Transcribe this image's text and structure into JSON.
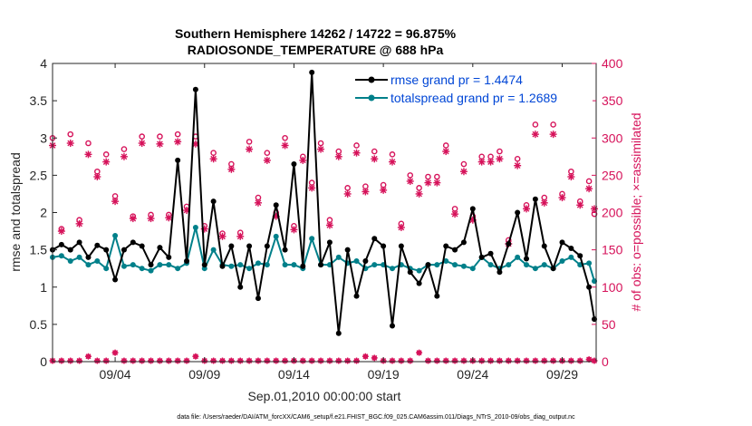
{
  "chart_data": {
    "type": "line",
    "title_line1": "Southern Hemisphere 14262 / 14722 = 96.875%",
    "title_line2": "RADIOSONDE_TEMPERATURE @ 688 hPa",
    "xlabel": "Sep.01,2010 00:00:00 start",
    "ylabel_left": "rmse and totalspread",
    "ylabel_right": "# of obs: o=possible; ×=assimilated",
    "xlim": [
      0.5,
      30.9
    ],
    "ylim_left": [
      0,
      4
    ],
    "ylim_right": [
      0,
      400
    ],
    "x_ticks": [
      {
        "value": 4,
        "label": "09/04"
      },
      {
        "value": 9,
        "label": "09/09"
      },
      {
        "value": 14,
        "label": "09/14"
      },
      {
        "value": 19,
        "label": "09/19"
      },
      {
        "value": 24,
        "label": "09/24"
      },
      {
        "value": 29,
        "label": "09/29"
      }
    ],
    "y_ticks_left": [
      {
        "value": 0,
        "label": "0"
      },
      {
        "value": 0.5,
        "label": "0.5"
      },
      {
        "value": 1,
        "label": "1"
      },
      {
        "value": 1.5,
        "label": "1.5"
      },
      {
        "value": 2,
        "label": "2"
      },
      {
        "value": 2.5,
        "label": "2.5"
      },
      {
        "value": 3,
        "label": "3"
      },
      {
        "value": 3.5,
        "label": "3.5"
      },
      {
        "value": 4,
        "label": "4"
      }
    ],
    "y_ticks_right": [
      {
        "value": 0,
        "label": "0"
      },
      {
        "value": 50,
        "label": "50"
      },
      {
        "value": 100,
        "label": "100"
      },
      {
        "value": 150,
        "label": "150"
      },
      {
        "value": 200,
        "label": "200"
      },
      {
        "value": 250,
        "label": "250"
      },
      {
        "value": 300,
        "label": "300"
      },
      {
        "value": 350,
        "label": "350"
      },
      {
        "value": 400,
        "label": "400"
      }
    ],
    "colors": {
      "rmse": "#000000",
      "spread": "#00808a",
      "obs": "#d6125a",
      "legend_text": "#0046d6"
    },
    "legend": [
      {
        "name": "rmse grand pr = 1.4474",
        "series": "rmse"
      },
      {
        "name": "totalspread grand pr = 1.2689",
        "series": "spread"
      }
    ],
    "series": [
      {
        "name": "rmse",
        "x": [
          0.5,
          1.0,
          1.5,
          2.0,
          2.5,
          3.0,
          3.5,
          4.0,
          4.5,
          5.0,
          5.5,
          6.0,
          6.5,
          7.0,
          7.5,
          8.0,
          8.5,
          9.0,
          9.5,
          10.0,
          10.5,
          11.0,
          11.5,
          12.0,
          12.5,
          13.0,
          13.5,
          14.0,
          14.5,
          15.0,
          15.5,
          16.0,
          16.5,
          17.0,
          17.5,
          18.0,
          18.5,
          19.0,
          19.5,
          20.0,
          20.5,
          21.0,
          21.5,
          22.0,
          22.5,
          23.0,
          23.5,
          24.0,
          24.5,
          25.0,
          25.5,
          26.0,
          26.5,
          27.0,
          27.5,
          28.0,
          28.5,
          29.0,
          29.5,
          30.0,
          30.5,
          30.8
        ],
        "values": [
          1.5,
          1.57,
          1.5,
          1.6,
          1.4,
          1.56,
          1.5,
          1.1,
          1.5,
          1.6,
          1.55,
          1.3,
          1.53,
          1.4,
          2.7,
          1.35,
          3.65,
          1.3,
          2.15,
          1.28,
          1.55,
          1.0,
          1.55,
          0.85,
          1.55,
          2.1,
          1.5,
          2.65,
          1.28,
          3.88,
          1.3,
          1.6,
          0.38,
          1.5,
          0.88,
          1.35,
          1.65,
          1.55,
          0.48,
          1.55,
          1.2,
          1.05,
          1.3,
          0.88,
          1.55,
          1.5,
          1.6,
          2.05,
          1.4,
          1.45,
          1.2,
          1.58,
          2.0,
          1.38,
          2.18,
          1.55,
          1.25,
          1.6,
          1.52,
          1.42,
          1.0,
          0.57
        ]
      },
      {
        "name": "totalspread",
        "x": [
          0.5,
          1.0,
          1.5,
          2.0,
          2.5,
          3.0,
          3.5,
          4.0,
          4.5,
          5.0,
          5.5,
          6.0,
          6.5,
          7.0,
          7.5,
          8.0,
          8.5,
          9.0,
          9.5,
          10.0,
          10.5,
          11.0,
          11.5,
          12.0,
          12.5,
          13.0,
          13.5,
          14.0,
          14.5,
          15.0,
          15.5,
          16.0,
          16.5,
          17.0,
          17.5,
          18.0,
          18.5,
          19.0,
          19.5,
          20.0,
          20.5,
          21.0,
          21.5,
          22.0,
          22.5,
          23.0,
          23.5,
          24.0,
          24.5,
          25.0,
          25.5,
          26.0,
          26.5,
          27.0,
          27.5,
          28.0,
          28.5,
          29.0,
          29.5,
          30.0,
          30.5,
          30.8
        ],
        "values": [
          1.4,
          1.42,
          1.35,
          1.4,
          1.3,
          1.35,
          1.25,
          1.69,
          1.28,
          1.3,
          1.25,
          1.22,
          1.3,
          1.3,
          1.25,
          1.32,
          1.8,
          1.25,
          1.5,
          1.3,
          1.28,
          1.3,
          1.25,
          1.32,
          1.3,
          1.68,
          1.3,
          1.3,
          1.25,
          1.65,
          1.3,
          1.3,
          1.4,
          1.32,
          1.35,
          1.25,
          1.3,
          1.3,
          1.25,
          1.3,
          1.25,
          1.22,
          1.3,
          1.3,
          1.35,
          1.3,
          1.28,
          1.25,
          1.4,
          1.3,
          1.25,
          1.3,
          1.4,
          1.3,
          1.25,
          1.3,
          1.25,
          1.35,
          1.4,
          1.3,
          1.32,
          1.08
        ]
      },
      {
        "name": "obs possible",
        "x": [
          0.5,
          1.0,
          1.5,
          2.0,
          2.5,
          3.0,
          3.5,
          4.0,
          4.5,
          5.0,
          5.5,
          6.0,
          6.5,
          7.0,
          7.5,
          8.0,
          8.5,
          9.0,
          9.5,
          10.0,
          10.5,
          11.0,
          11.5,
          12.0,
          12.5,
          13.0,
          13.5,
          14.0,
          14.5,
          15.0,
          15.5,
          16.0,
          16.5,
          17.0,
          17.5,
          18.0,
          18.5,
          19.0,
          19.5,
          20.0,
          20.5,
          21.0,
          21.5,
          22.0,
          22.5,
          23.0,
          23.5,
          24.0,
          24.5,
          25.0,
          25.5,
          26.0,
          26.5,
          27.0,
          27.5,
          28.0,
          28.5,
          29.0,
          29.5,
          30.0,
          30.5,
          30.8
        ],
        "values": [
          300,
          178,
          305,
          190,
          293,
          255,
          278,
          222,
          285,
          195,
          302,
          197,
          302,
          197,
          305,
          208,
          302,
          182,
          280,
          172,
          265,
          173,
          295,
          220,
          280,
          200,
          300,
          182,
          275,
          240,
          293,
          190,
          282,
          233,
          290,
          235,
          282,
          237,
          278,
          185,
          250,
          233,
          248,
          248,
          290,
          205,
          265,
          195,
          275,
          275,
          282,
          163,
          272,
          210,
          318,
          220,
          318,
          225,
          255,
          215,
          242,
          198
        ],
        "marker": "circle"
      },
      {
        "name": "obs assimilated",
        "x": [
          0.5,
          1.0,
          1.5,
          2.0,
          2.5,
          3.0,
          3.5,
          4.0,
          4.5,
          5.0,
          5.5,
          6.0,
          6.5,
          7.0,
          7.5,
          8.0,
          8.5,
          9.0,
          9.5,
          10.0,
          10.5,
          11.0,
          11.5,
          12.0,
          12.5,
          13.0,
          13.5,
          14.0,
          14.5,
          15.0,
          15.5,
          16.0,
          16.5,
          17.0,
          17.5,
          18.0,
          18.5,
          19.0,
          19.5,
          20.0,
          20.5,
          21.0,
          21.5,
          22.0,
          22.5,
          23.0,
          23.5,
          24.0,
          24.5,
          25.0,
          25.5,
          26.0,
          26.5,
          27.0,
          27.5,
          28.0,
          28.5,
          29.0,
          29.5,
          30.0,
          30.5,
          30.8
        ],
        "values": [
          290,
          175,
          293,
          185,
          278,
          248,
          268,
          215,
          275,
          192,
          293,
          192,
          292,
          193,
          295,
          203,
          292,
          178,
          272,
          168,
          258,
          168,
          285,
          213,
          270,
          195,
          290,
          177,
          270,
          233,
          285,
          183,
          275,
          225,
          280,
          228,
          272,
          230,
          268,
          180,
          242,
          225,
          240,
          240,
          282,
          198,
          255,
          190,
          268,
          268,
          272,
          158,
          263,
          205,
          305,
          213,
          305,
          220,
          248,
          210,
          232,
          205
        ],
        "marker": "asterisk"
      },
      {
        "name": "obs zero line",
        "x": [
          0.5,
          1.0,
          1.5,
          2.0,
          2.5,
          3.0,
          3.5,
          4.0,
          4.5,
          5.0,
          5.5,
          6.0,
          6.5,
          7.0,
          7.5,
          8.0,
          8.5,
          9.0,
          9.5,
          10.0,
          10.5,
          11.0,
          11.5,
          12.0,
          12.5,
          13.0,
          13.5,
          14.0,
          14.5,
          15.0,
          15.5,
          16.0,
          16.5,
          17.0,
          17.5,
          18.0,
          18.5,
          19.0,
          19.5,
          20.0,
          20.5,
          21.0,
          21.5,
          22.0,
          22.5,
          23.0,
          23.5,
          24.0,
          24.5,
          25.0,
          25.5,
          26.0,
          26.5,
          27.0,
          27.5,
          28.0,
          28.5,
          29.0,
          29.5,
          30.0,
          30.5,
          30.8
        ],
        "values": [
          0,
          0,
          0,
          0,
          7,
          0,
          0,
          12,
          0,
          0,
          0,
          0,
          0,
          0,
          0,
          0,
          7,
          0,
          0,
          0,
          0,
          0,
          0,
          0,
          0,
          0,
          0,
          0,
          0,
          0,
          0,
          0,
          0,
          0,
          0,
          7,
          5,
          0,
          0,
          0,
          0,
          12,
          0,
          0,
          0,
          0,
          0,
          0,
          0,
          0,
          0,
          0,
          0,
          0,
          0,
          0,
          0,
          0,
          0,
          0,
          3,
          0
        ],
        "marker": "circle+asterisk"
      }
    ],
    "footer": "data file: /Users/raeder/DAI/ATM_forcXX/CAM6_setup/f.e21.FHIST_BGC.f09_025.CAM6assim.011/Diags_NTrS_2010-09/obs_diag_output.nc"
  }
}
